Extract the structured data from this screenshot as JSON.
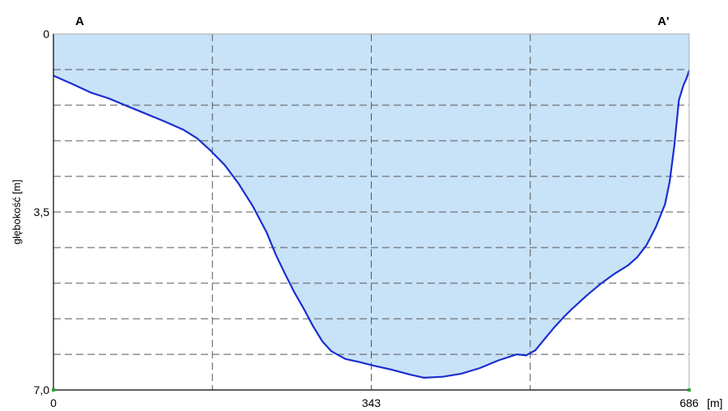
{
  "chart_data": {
    "type": "area",
    "title": "",
    "ylabel": "głębokość [m]",
    "xunit": "[m]",
    "start_label": "A",
    "end_label": "A'",
    "xlim": [
      0,
      686
    ],
    "ylim": [
      0,
      7.0
    ],
    "y_inverted": true,
    "grid": true,
    "x_ticks": [
      0,
      343,
      686
    ],
    "x_tick_labels": [
      "0",
      "343",
      "686"
    ],
    "y_ticks": [
      0,
      3.5,
      7.0
    ],
    "y_tick_labels": [
      "0",
      "3,5",
      "7,0"
    ],
    "colors": {
      "fill": "#c8e2f8",
      "line": "#1a2ed0",
      "grid": "#555555",
      "marker": "#2e9e3a"
    },
    "series": [
      {
        "x": [
          0,
          20,
          40,
          60,
          80,
          100,
          120,
          140,
          155,
          170,
          185,
          200,
          215,
          230,
          240,
          250,
          260,
          270,
          280,
          290,
          300,
          315,
          330,
          345,
          365,
          385,
          400,
          420,
          440,
          460,
          480,
          500,
          510,
          520,
          530,
          540,
          550,
          560,
          575,
          590,
          605,
          620,
          630,
          640,
          650,
          660,
          665,
          670,
          675,
          680,
          683,
          686
        ],
        "y": [
          0.82,
          0.98,
          1.15,
          1.27,
          1.42,
          1.57,
          1.72,
          1.88,
          2.05,
          2.3,
          2.58,
          2.95,
          3.38,
          3.9,
          4.34,
          4.72,
          5.08,
          5.4,
          5.74,
          6.04,
          6.24,
          6.39,
          6.45,
          6.52,
          6.6,
          6.7,
          6.76,
          6.74,
          6.68,
          6.57,
          6.42,
          6.3,
          6.32,
          6.22,
          6.0,
          5.78,
          5.58,
          5.4,
          5.15,
          4.92,
          4.72,
          4.55,
          4.39,
          4.15,
          3.8,
          3.35,
          2.9,
          2.2,
          1.3,
          1.0,
          0.88,
          0.72
        ]
      }
    ]
  }
}
